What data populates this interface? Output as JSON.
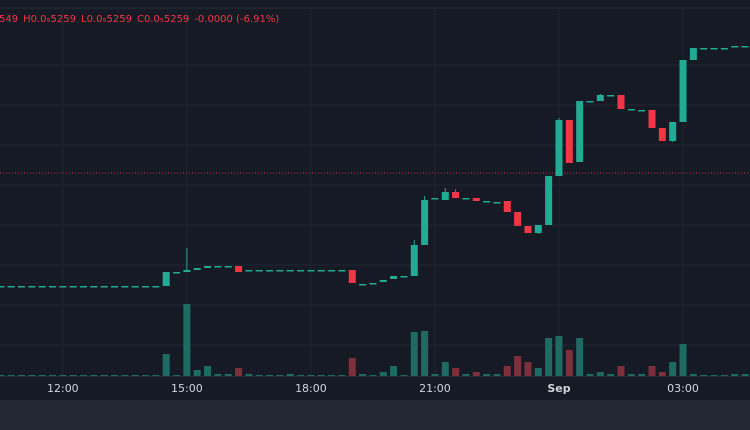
{
  "chart_data": {
    "type": "candlestick",
    "ohlc_header": [
      "549",
      "H",
      "0.0₅5259",
      "L",
      "0.0₅5259",
      "C",
      "0.0₅5259",
      "-0.0000 (-6.91%)"
    ],
    "x": [
      10.5,
      10.75,
      11,
      11.25,
      11.5,
      11.75,
      12,
      12.25,
      12.5,
      12.75,
      13,
      13.25,
      13.5,
      13.75,
      14,
      14.25,
      14.5,
      14.75,
      15,
      15.25,
      15.5,
      15.75,
      16,
      16.25,
      16.5,
      16.75,
      17,
      17.25,
      17.5,
      17.75,
      18,
      18.25,
      18.5,
      18.75,
      19,
      19.25,
      19.5,
      19.75,
      20,
      20.25,
      20.5,
      20.75,
      21,
      21.25,
      21.5,
      21.75,
      22,
      22.25,
      22.5,
      22.75,
      23,
      23.25,
      23.5,
      23.75,
      24,
      24.25,
      24.5,
      24.75,
      25,
      25.25,
      25.5,
      25.75,
      26,
      26.25,
      26.5,
      26.75,
      27,
      27.25,
      27.5,
      27.75,
      28,
      28.25,
      28.5
    ],
    "open": [
      28.5,
      28.5,
      28.5,
      28.5,
      28.5,
      28.5,
      28.5,
      28.5,
      28.5,
      28.5,
      28.5,
      28.5,
      28.5,
      28.5,
      28.5,
      28.5,
      28.5,
      32,
      32,
      32.5,
      33,
      33.5,
      33.5,
      33.5,
      32.5,
      32.5,
      32.5,
      32.5,
      32.5,
      32.5,
      32.5,
      32.5,
      32.5,
      32.5,
      32.5,
      29,
      29.25,
      29.5,
      30.25,
      31,
      31,
      38.75,
      50.5,
      50,
      52,
      50.5,
      50.5,
      49.75,
      49.5,
      49.75,
      47,
      43.5,
      41.75,
      43.75,
      56,
      70,
      59.5,
      74.75,
      74.75,
      76.25,
      76.25,
      72.75,
      72.5,
      72.5,
      68,
      64.75,
      69.5,
      85,
      88,
      88,
      88,
      88.5,
      88.5
    ],
    "high": [
      28.5,
      28.5,
      28.5,
      28.5,
      28.5,
      28.5,
      28.5,
      28.5,
      28.5,
      28.5,
      28.5,
      28.5,
      28.5,
      28.5,
      28.5,
      28.5,
      32,
      32,
      38,
      33,
      33.5,
      33.5,
      33.5,
      33.5,
      32.5,
      32.5,
      32.5,
      32.5,
      32.5,
      32.5,
      32.5,
      32.5,
      32.5,
      32.5,
      32.5,
      29,
      29.25,
      30,
      31,
      31,
      40,
      51,
      50.5,
      53,
      52.75,
      50.5,
      50.5,
      49.75,
      49.5,
      49.75,
      47,
      43.5,
      43.75,
      56,
      70.5,
      70,
      74.75,
      74.75,
      76.5,
      76.25,
      76.25,
      72.75,
      72.5,
      72.5,
      68,
      69.5,
      85,
      88,
      88,
      88,
      88,
      88.5,
      88.5
    ],
    "low": [
      28.5,
      28.5,
      28.5,
      28.5,
      28.5,
      28.5,
      28.5,
      28.5,
      28.5,
      28.5,
      28.5,
      28.5,
      28.5,
      28.5,
      28.5,
      28.5,
      28.5,
      32,
      32,
      32.5,
      33,
      33.5,
      33.5,
      32,
      32.5,
      32.5,
      32.5,
      32.5,
      32.5,
      32.5,
      32.5,
      32.5,
      32.5,
      32.5,
      29.25,
      29,
      29.25,
      29.5,
      30.25,
      31,
      31,
      38.75,
      50.5,
      50,
      50.5,
      50.5,
      49.75,
      49.75,
      49.5,
      47,
      43.5,
      41.75,
      41.5,
      43.75,
      56,
      59.25,
      59.5,
      74.75,
      74.75,
      76.25,
      72.75,
      72.75,
      72.5,
      68,
      64.75,
      64.5,
      69.5,
      85,
      88,
      88,
      88,
      88.5,
      88.5
    ],
    "close": [
      28.5,
      28.5,
      28.5,
      28.5,
      28.5,
      28.5,
      28.5,
      28.5,
      28.5,
      28.5,
      28.5,
      28.5,
      28.5,
      28.5,
      28.5,
      28.5,
      32,
      32,
      32.5,
      33,
      33.5,
      33.5,
      33.5,
      32,
      32.5,
      32.5,
      32.5,
      32.5,
      32.5,
      32.5,
      32.5,
      32.5,
      32.5,
      32.5,
      29.25,
      29,
      29.25,
      30,
      31,
      31,
      38.75,
      50,
      50.5,
      52,
      50.5,
      50.5,
      49.75,
      49.75,
      49.5,
      47,
      43.5,
      41.75,
      43.75,
      56,
      70,
      59.25,
      74.75,
      74.75,
      76.25,
      76.25,
      72.75,
      72.75,
      72.5,
      68,
      64.75,
      69.5,
      85,
      88,
      88,
      88,
      88,
      88.5,
      88.5
    ],
    "volume": [
      1,
      1,
      1,
      1,
      1,
      1,
      1,
      1,
      1,
      1,
      1,
      1,
      1,
      1,
      1,
      1,
      22,
      1,
      72,
      6,
      10,
      2,
      2,
      8,
      2,
      1,
      1,
      1,
      2,
      1,
      1,
      1,
      1,
      1,
      18,
      2,
      1,
      4,
      10,
      1,
      44,
      45,
      2,
      14,
      8,
      2,
      4,
      2,
      2,
      10,
      20,
      14,
      8,
      38,
      40,
      26,
      38,
      2,
      4,
      2,
      10,
      2,
      2,
      10,
      4,
      14,
      32,
      2,
      1,
      1,
      1,
      2,
      2
    ],
    "up_color": "#22ab94",
    "down_color": "#f23645",
    "volume_up_color": "#1d6b62",
    "volume_down_color": "#7e2f3c",
    "price_line": 56.75,
    "price_line_color": "#f23645",
    "xlim": [
      10.48,
      28.62
    ],
    "xticks": [
      {
        "value": 12,
        "label": "12:00"
      },
      {
        "value": 15,
        "label": "15:00"
      },
      {
        "value": 18,
        "label": "18:00"
      },
      {
        "value": 21,
        "label": "21:00"
      },
      {
        "value": 24,
        "label": "Sep"
      },
      {
        "value": 27,
        "label": "03:00"
      }
    ],
    "ylim": [
      0,
      100
    ],
    "yticks": [
      13.75,
      23.75,
      33.75,
      43.75,
      53.75,
      63.75,
      73.75,
      83.75
    ],
    "vlim": [
      0,
      100
    ],
    "grid": true
  }
}
